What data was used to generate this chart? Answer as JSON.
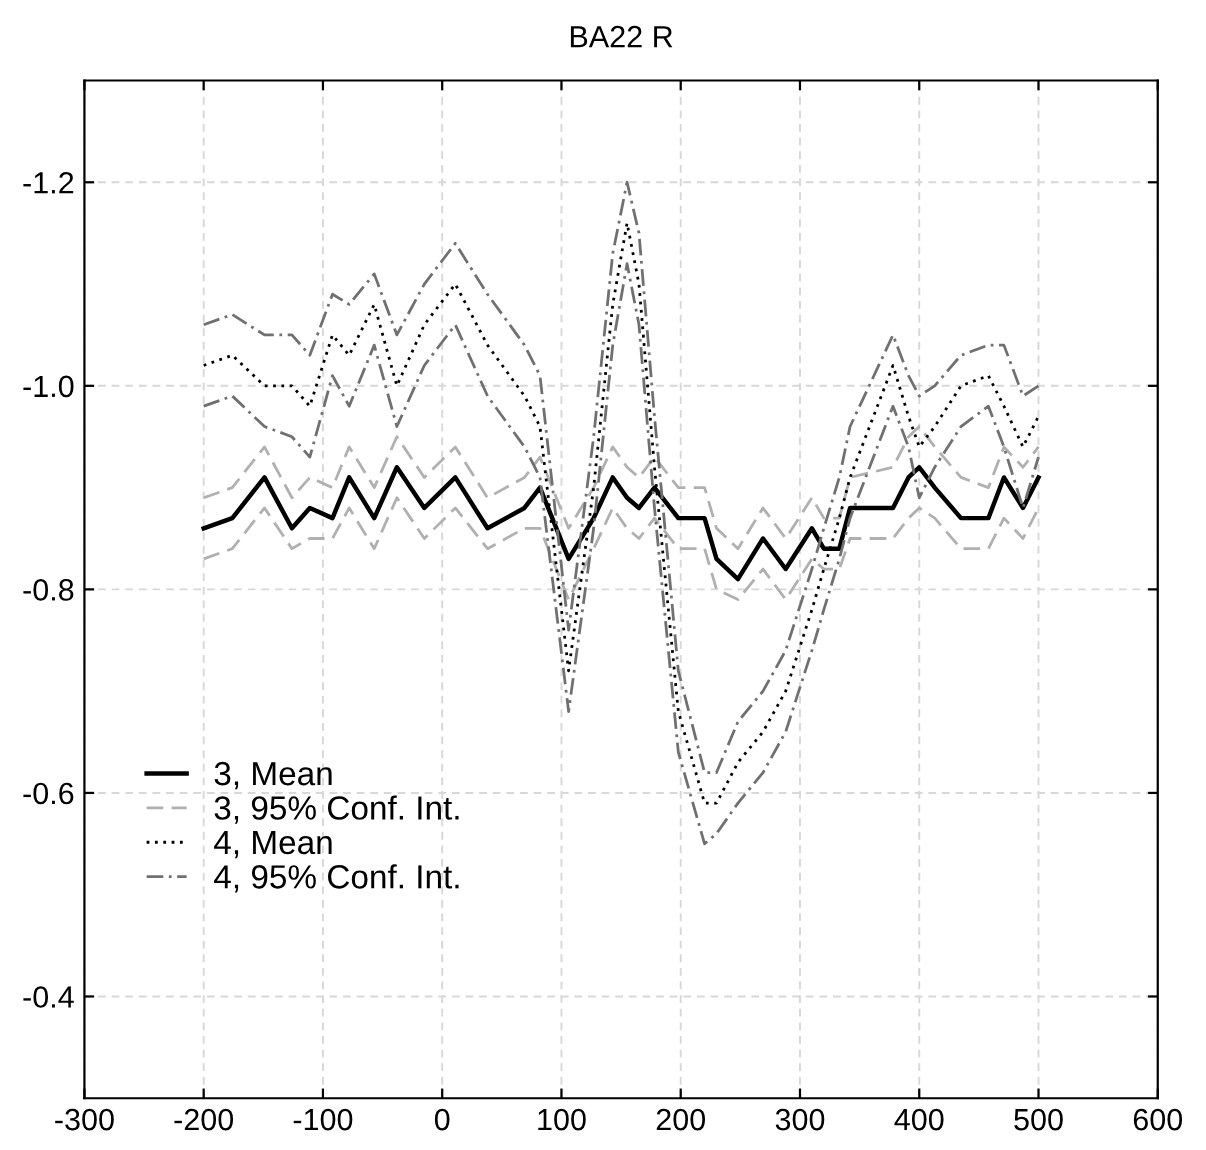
{
  "chart_data": {
    "type": "line",
    "title": "BA22 R",
    "xlim": [
      -300,
      600
    ],
    "xticks": [
      -300,
      -200,
      -100,
      0,
      100,
      200,
      300,
      400,
      500,
      600
    ],
    "ylim": [
      -0.3,
      -1.3
    ],
    "yticks": [
      -1.2,
      {
        "value": -1.0,
        "label": "-1.0"
      },
      -0.8,
      -0.6,
      -0.4
    ],
    "grid": true,
    "legend": "bottom left",
    "x": [
      -200,
      -176,
      -149,
      -126,
      -111,
      -92,
      -78,
      -57,
      -38,
      -15,
      11,
      38,
      69,
      82,
      106,
      127,
      143,
      155,
      165,
      178,
      198,
      220,
      230,
      248,
      269,
      288,
      310,
      320,
      333,
      342,
      378,
      391,
      400,
      413,
      435,
      458,
      471,
      487,
      500
    ],
    "series": [
      {
        "name": "3, Mean",
        "color": "#000000",
        "line_style": "solid",
        "values": [
          -0.86,
          -0.87,
          -0.91,
          -0.86,
          -0.88,
          -0.87,
          -0.91,
          -0.87,
          -0.92,
          -0.88,
          -0.91,
          -0.86,
          -0.88,
          -0.9,
          -0.83,
          -0.87,
          -0.91,
          -0.89,
          -0.88,
          -0.9,
          -0.87,
          -0.87,
          -0.83,
          -0.81,
          -0.85,
          -0.82,
          -0.86,
          -0.84,
          -0.84,
          -0.88,
          -0.88,
          -0.91,
          -0.92,
          -0.9,
          -0.87,
          -0.87,
          -0.91,
          -0.88,
          -0.91
        ]
      },
      {
        "name": "3, 95% Conf. Int.",
        "color": "#b0b0b0",
        "line_style": "dashed",
        "values": [
          -0.89,
          -0.9,
          -0.94,
          -0.89,
          -0.91,
          -0.9,
          -0.94,
          -0.9,
          -0.95,
          -0.91,
          -0.94,
          -0.89,
          -0.91,
          -0.93,
          -0.86,
          -0.9,
          -0.94,
          -0.92,
          -0.91,
          -0.93,
          -0.9,
          -0.9,
          -0.86,
          -0.84,
          -0.88,
          -0.85,
          -0.89,
          -0.87,
          -0.87,
          -0.91,
          -0.92,
          -0.95,
          -0.96,
          -0.94,
          -0.91,
          -0.9,
          -0.94,
          -0.92,
          -0.94
        ]
      },
      {
        "color": "#b0b0b0",
        "line_style": "dashed",
        "values": [
          -0.83,
          -0.84,
          -0.88,
          -0.84,
          -0.85,
          -0.85,
          -0.88,
          -0.84,
          -0.89,
          -0.85,
          -0.88,
          -0.84,
          -0.86,
          -0.86,
          -0.79,
          -0.84,
          -0.88,
          -0.86,
          -0.85,
          -0.87,
          -0.84,
          -0.84,
          -0.8,
          -0.79,
          -0.82,
          -0.79,
          -0.83,
          -0.82,
          -0.82,
          -0.85,
          -0.85,
          -0.87,
          -0.88,
          -0.87,
          -0.84,
          -0.84,
          -0.87,
          -0.85,
          -0.88
        ]
      },
      {
        "name": "4, Mean",
        "color": "#000000",
        "line_style": "dotted",
        "values": [
          -1.02,
          -1.03,
          -1.0,
          -1.0,
          -0.98,
          -1.05,
          -1.03,
          -1.08,
          -1.0,
          -1.06,
          -1.1,
          -1.04,
          -0.99,
          -0.96,
          -0.72,
          -0.9,
          -1.08,
          -1.16,
          -1.1,
          -0.92,
          -0.68,
          -0.59,
          -0.59,
          -0.63,
          -0.66,
          -0.7,
          -0.78,
          -0.82,
          -0.87,
          -0.91,
          -1.02,
          -0.97,
          -0.94,
          -0.96,
          -1.0,
          -1.01,
          -0.98,
          -0.94,
          -0.97
        ]
      },
      {
        "name": "4, 95% Conf. Int.",
        "color": "#707070",
        "line_style": "dashdot",
        "values": [
          -1.06,
          -1.07,
          -1.05,
          -1.05,
          -1.03,
          -1.09,
          -1.08,
          -1.11,
          -1.05,
          -1.1,
          -1.14,
          -1.09,
          -1.04,
          -1.01,
          -0.76,
          -0.95,
          -1.13,
          -1.2,
          -1.15,
          -0.97,
          -0.72,
          -0.62,
          -0.62,
          -0.67,
          -0.7,
          -0.74,
          -0.82,
          -0.86,
          -0.91,
          -0.96,
          -1.05,
          -1.01,
          -0.99,
          -1.0,
          -1.03,
          -1.04,
          -1.04,
          -0.99,
          -1.0
        ]
      },
      {
        "color": "#707070",
        "line_style": "dashdot",
        "values": [
          -0.98,
          -0.99,
          -0.96,
          -0.95,
          -0.93,
          -1.01,
          -0.98,
          -1.04,
          -0.96,
          -1.02,
          -1.06,
          -0.99,
          -0.94,
          -0.91,
          -0.68,
          -0.86,
          -1.04,
          -1.12,
          -1.06,
          -0.88,
          -0.64,
          -0.55,
          -0.56,
          -0.59,
          -0.62,
          -0.66,
          -0.74,
          -0.78,
          -0.83,
          -0.87,
          -0.98,
          -0.94,
          -0.89,
          -0.92,
          -0.96,
          -0.98,
          -0.94,
          -0.88,
          -0.93
        ]
      }
    ]
  }
}
